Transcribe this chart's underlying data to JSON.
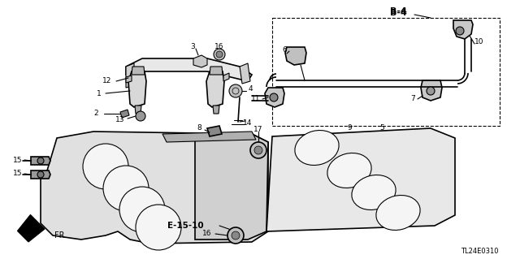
{
  "bg": "#ffffff",
  "diagram_id": "TL24E0310",
  "label_b4": "B-4",
  "label_e": "E-15-10",
  "label_fr": "FR.",
  "figsize": [
    6.4,
    3.19
  ],
  "dpi": 100
}
